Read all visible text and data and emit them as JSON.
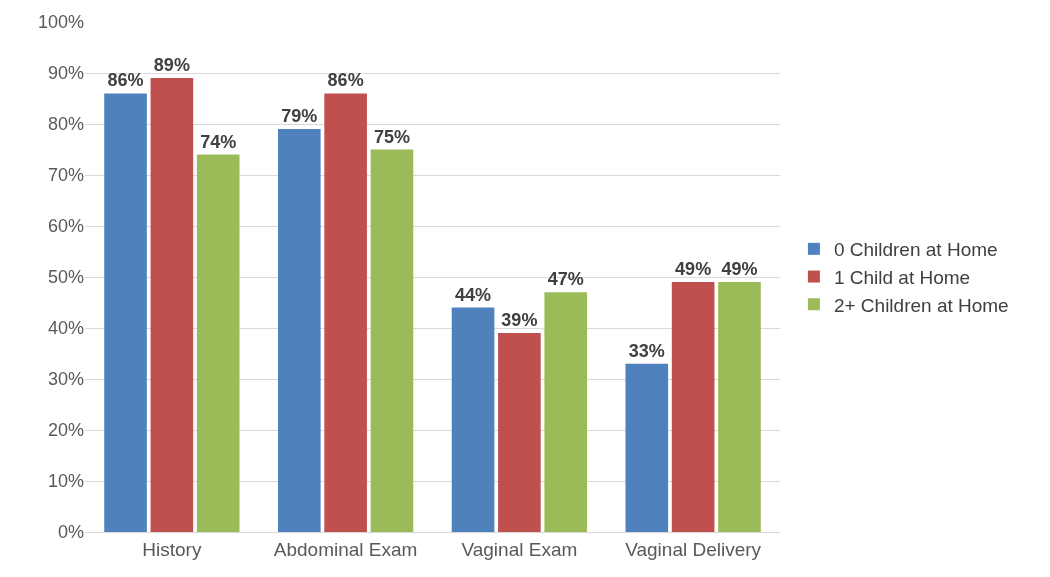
{
  "chart_data": {
    "type": "bar",
    "categories": [
      "History",
      "Abdominal Exam",
      "Vaginal Exam",
      "Vaginal Delivery"
    ],
    "series": [
      {
        "name": "0 Children at Home",
        "color": "#4f81bd",
        "values": [
          86,
          79,
          44,
          33
        ],
        "value_labels": [
          "86%",
          "79%",
          "44%",
          "33%"
        ]
      },
      {
        "name": "1 Child at Home",
        "color": "#c0504d",
        "values": [
          89,
          86,
          39,
          49
        ],
        "value_labels": [
          "89%",
          "86%",
          "39%",
          "49%"
        ]
      },
      {
        "name": "2+ Children at Home",
        "color": "#9bbb59",
        "values": [
          74,
          75,
          47,
          49
        ],
        "value_labels": [
          "74%",
          "75%",
          "47%",
          "49%"
        ]
      }
    ],
    "ylim": [
      0,
      100
    ],
    "yticks": [
      {
        "value": 0,
        "label": "0%"
      },
      {
        "value": 10,
        "label": "10%"
      },
      {
        "value": 20,
        "label": "20%"
      },
      {
        "value": 30,
        "label": "30%"
      },
      {
        "value": 40,
        "label": "40%"
      },
      {
        "value": 50,
        "label": "50%"
      },
      {
        "value": 60,
        "label": "60%"
      },
      {
        "value": 70,
        "label": "70%"
      },
      {
        "value": 80,
        "label": "80%"
      },
      {
        "value": 90,
        "label": "90%"
      },
      {
        "value": 100,
        "label": "100%"
      }
    ],
    "grid": "y",
    "legend": "right"
  }
}
